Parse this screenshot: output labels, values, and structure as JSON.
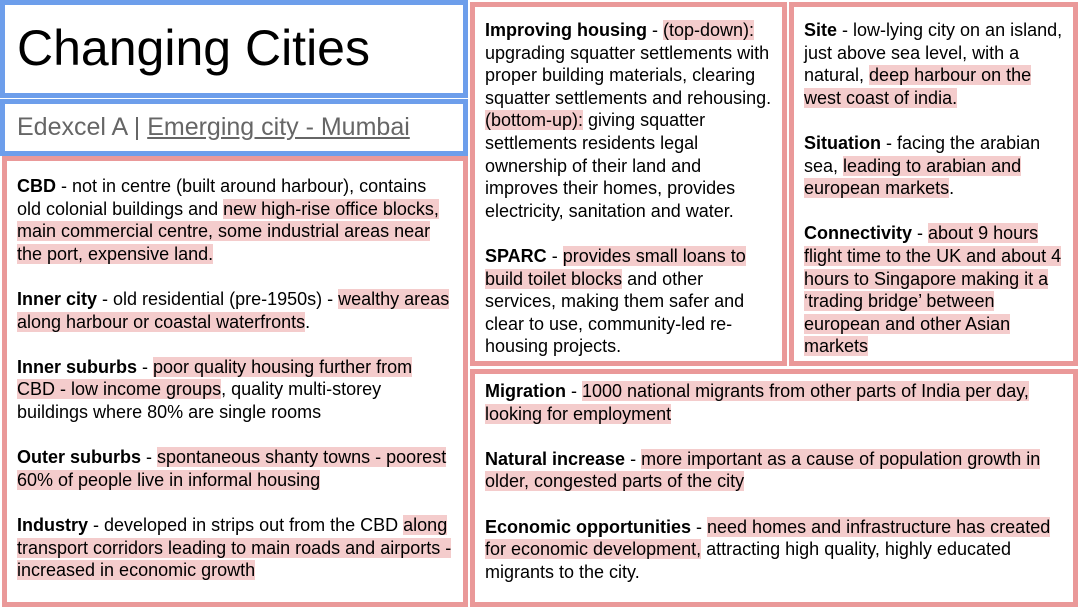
{
  "header": {
    "title": "Changing Cities",
    "subtitle": {
      "prefix": "Edexcel A | ",
      "link": "Emerging city - Mumbai"
    }
  },
  "panels": [
    {
      "paragraphs": [
        {
          "runs": [
            {
              "text": "CBD",
              "style": "bold"
            },
            {
              "text": " - not in centre (built around harbour), contains old colonial buildings and ",
              "style": "plain"
            },
            {
              "text": "new high-rise office blocks, main commercial centre, some industrial areas near the port, expensive land.",
              "style": "highlight"
            }
          ]
        },
        {
          "runs": [
            {
              "text": "Inner city",
              "style": "bold"
            },
            {
              "text": " - old residential (pre-1950s) - ",
              "style": "plain"
            },
            {
              "text": "wealthy areas along harbour or coastal waterfronts",
              "style": "highlight"
            },
            {
              "text": ".",
              "style": "plain"
            }
          ]
        },
        {
          "runs": [
            {
              "text": "Inner suburbs",
              "style": "bold"
            },
            {
              "text": " - ",
              "style": "plain"
            },
            {
              "text": "poor quality housing further from CBD - low income groups",
              "style": "highlight"
            },
            {
              "text": ", quality multi-storey buildings where 80% are single rooms",
              "style": "plain"
            }
          ]
        },
        {
          "runs": [
            {
              "text": "Outer suburbs",
              "style": "bold"
            },
            {
              "text": " - ",
              "style": "plain"
            },
            {
              "text": "spontaneous shanty towns - poorest 60% of people live in informal housing",
              "style": "highlight"
            }
          ]
        },
        {
          "runs": [
            {
              "text": "Industry",
              "style": "bold"
            },
            {
              "text": " - developed in strips out from the CBD ",
              "style": "plain"
            },
            {
              "text": "along transport corridors leading to main roads and airports - increased in economic growth",
              "style": "highlight"
            }
          ]
        }
      ]
    },
    {
      "paragraphs": [
        {
          "runs": [
            {
              "text": "Improving housing",
              "style": "bold"
            },
            {
              "text": " - ",
              "style": "plain"
            },
            {
              "text": "(top-down):",
              "style": "highlight"
            },
            {
              "text": " upgrading squatter settlements with proper building materials, clearing squatter settlements and rehousing. ",
              "style": "plain"
            },
            {
              "text": "(bottom-up):",
              "style": "highlight"
            },
            {
              "text": " giving squatter settlements residents legal ownership of their land and improves their homes, provides electricity, sanitation and water.",
              "style": "plain"
            }
          ]
        },
        {
          "runs": [
            {
              "text": "SPARC",
              "style": "bold"
            },
            {
              "text": " - ",
              "style": "plain"
            },
            {
              "text": "provides small loans to build toilet blocks",
              "style": "highlight"
            },
            {
              "text": " and other services, making them safer and clear to use, community-led re-housing projects.",
              "style": "plain"
            }
          ]
        }
      ]
    },
    {
      "paragraphs": [
        {
          "runs": [
            {
              "text": "Site",
              "style": "bold"
            },
            {
              "text": " - low-lying city on an island, just above sea level, with a natural, ",
              "style": "plain"
            },
            {
              "text": "deep harbour on the west coast of india.",
              "style": "highlight"
            }
          ]
        },
        {
          "runs": [
            {
              "text": "Situation",
              "style": "bold"
            },
            {
              "text": " - facing the arabian sea, ",
              "style": "plain"
            },
            {
              "text": "leading to arabian and european markets",
              "style": "highlight"
            },
            {
              "text": ".",
              "style": "plain"
            }
          ]
        },
        {
          "runs": [
            {
              "text": "Connectivity",
              "style": "bold"
            },
            {
              "text": " - ",
              "style": "plain"
            },
            {
              "text": "about 9 hours flight time to the UK and about 4 hours to Singapore making it a ‘trading bridge’ between european and other Asian markets",
              "style": "highlight"
            }
          ]
        }
      ]
    },
    {
      "paragraphs": [
        {
          "runs": [
            {
              "text": "Migration",
              "style": "bold"
            },
            {
              "text": " - ",
              "style": "plain"
            },
            {
              "text": "1000 national migrants from other parts of India per day, looking for employment",
              "style": "highlight"
            }
          ]
        },
        {
          "runs": [
            {
              "text": "Natural increase",
              "style": "bold"
            },
            {
              "text": " - ",
              "style": "plain"
            },
            {
              "text": "more important as a cause of population growth in older, congested parts of the city",
              "style": "highlight"
            }
          ]
        },
        {
          "runs": [
            {
              "text": "Economic opportunities",
              "style": "bold"
            },
            {
              "text": " - ",
              "style": "plain"
            },
            {
              "text": "need homes and infrastructure has created for economic development,",
              "style": "highlight"
            },
            {
              "text": " attracting high quality, highly educated migrants to the city.",
              "style": "plain"
            }
          ]
        }
      ]
    }
  ]
}
